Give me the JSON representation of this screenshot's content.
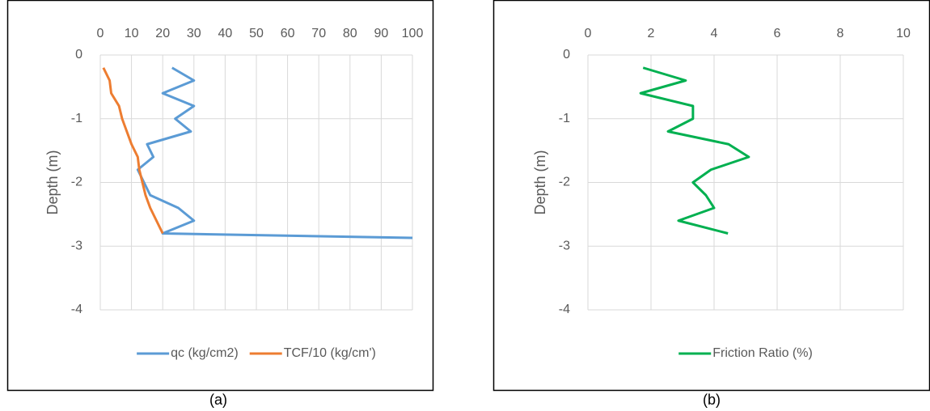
{
  "chart_data": [
    {
      "type": "line",
      "caption": "(a)",
      "ylabel": "Depth (m)",
      "xlim": [
        0,
        100
      ],
      "xticks": [
        0,
        10,
        20,
        30,
        40,
        50,
        60,
        70,
        80,
        90,
        100
      ],
      "ylim": [
        -4,
        0
      ],
      "yticks": [
        0,
        -1,
        -2,
        -3,
        -4
      ],
      "grid": true,
      "legend": "bottom",
      "series": [
        {
          "name": "qc (kg/cm2)",
          "color": "#5b9bd5",
          "x": [
            23,
            30,
            20,
            30,
            24,
            29,
            15,
            17,
            12,
            14,
            16,
            25,
            30,
            20,
            100
          ],
          "values": [
            -0.2,
            -0.4,
            -0.6,
            -0.8,
            -1.0,
            -1.2,
            -1.4,
            -1.6,
            -1.8,
            -2.0,
            -2.2,
            -2.4,
            -2.6,
            -2.8,
            -2.87
          ]
        },
        {
          "name": "TCF/10 (kg/cm')",
          "color": "#ed7d31",
          "x": [
            1,
            3,
            3.5,
            6,
            7,
            8.5,
            10,
            12,
            12.5,
            13.5,
            14.5,
            16,
            18,
            20
          ],
          "values": [
            -0.2,
            -0.4,
            -0.6,
            -0.8,
            -1.0,
            -1.2,
            -1.4,
            -1.6,
            -1.8,
            -2.0,
            -2.2,
            -2.4,
            -2.6,
            -2.8
          ]
        }
      ]
    },
    {
      "type": "line",
      "caption": "(b)",
      "ylabel": "Depth (m)",
      "xlim": [
        0,
        10
      ],
      "xticks": [
        0,
        2,
        4,
        6,
        8,
        10
      ],
      "ylim": [
        -4,
        0
      ],
      "yticks": [
        0,
        -1,
        -2,
        -3,
        -4
      ],
      "grid": true,
      "legend": "bottom",
      "series": [
        {
          "name": "Friction Ratio (%)",
          "color": "#00b050",
          "x": [
            1.75,
            3.1,
            1.67,
            3.33,
            3.33,
            2.54,
            4.46,
            5.1,
            3.9,
            3.33,
            3.74,
            4.0,
            2.87,
            4.44
          ],
          "values": [
            -0.2,
            -0.4,
            -0.6,
            -0.8,
            -1.0,
            -1.2,
            -1.4,
            -1.6,
            -1.8,
            -2.0,
            -2.2,
            -2.4,
            -2.6,
            -2.8
          ]
        }
      ]
    }
  ]
}
